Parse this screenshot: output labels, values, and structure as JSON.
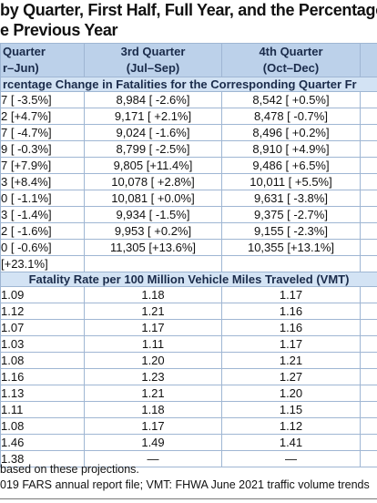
{
  "header": {
    "title_lines": [
      "by Quarter, First Half, Full Year, and the Percentage",
      "e Previous Year"
    ]
  },
  "table": {
    "columns": [
      [
        "Quarter",
        "r–Jun)"
      ],
      [
        "3rd Quarter",
        "(Jul–Sep)"
      ],
      [
        "4th Quarter",
        "(Oct–Dec)"
      ]
    ],
    "sections": [
      {
        "heading": "rcentage Change in Fatalities for the Corresponding Quarter Fr",
        "rows": [
          [
            "7 [ -3.5%]",
            "8,984 [ -2.6%]",
            "8,542 [ +0.5%]"
          ],
          [
            "2 [+4.7%]",
            "9,171 [ +2.1%]",
            "8,478 [ -0.7%]"
          ],
          [
            "7 [ -4.7%]",
            "9,024 [ -1.6%]",
            "8,496 [ +0.2%]"
          ],
          [
            "9 [ -0.3%]",
            "8,799 [ -2.5%]",
            "8,910 [ +4.9%]"
          ],
          [
            "7 [+7.9%]",
            "9,805 [+11.4%]",
            "9,486 [ +6.5%]"
          ],
          [
            "3 [+8.4%]",
            "10,078 [ +2.8%]",
            "10,011 [ +5.5%]"
          ],
          [
            "0 [ -1.1%]",
            "10,081 [ +0.0%]",
            "9,631 [ -3.8%]"
          ],
          [
            "3 [ -1.4%]",
            "9,934 [ -1.5%]",
            "9,375 [ -2.7%]"
          ],
          [
            "2 [ -1.6%]",
            "9,953 [ +0.2%]",
            "9,155 [ -2.3%]"
          ],
          [
            "0 [ -0.6%]",
            "11,305 [+13.6%]",
            "10,355 [+13.1%]"
          ],
          [
            "[+23.1%]"
          ]
        ]
      },
      {
        "heading": "Fatality Rate per 100 Million Vehicle Miles Traveled (VMT)",
        "rows": [
          [
            "1.09",
            "1.18",
            "1.17"
          ],
          [
            "1.12",
            "1.21",
            "1.16"
          ],
          [
            "1.07",
            "1.17",
            "1.16"
          ],
          [
            "1.03",
            "1.11",
            "1.17"
          ],
          [
            "1.08",
            "1.20",
            "1.21"
          ],
          [
            "1.16",
            "1.23",
            "1.27"
          ],
          [
            "1.13",
            "1.21",
            "1.20"
          ],
          [
            "1.11",
            "1.18",
            "1.15"
          ],
          [
            "1.08",
            "1.17",
            "1.12"
          ],
          [
            "1.46",
            "1.49",
            "1.41"
          ],
          [
            "1.38",
            "—",
            "—"
          ]
        ]
      }
    ]
  },
  "footer": {
    "notes": [
      "based on these projections.",
      "019 FARS annual report file; VMT: FHWA June 2021 traffic volume trends"
    ]
  }
}
